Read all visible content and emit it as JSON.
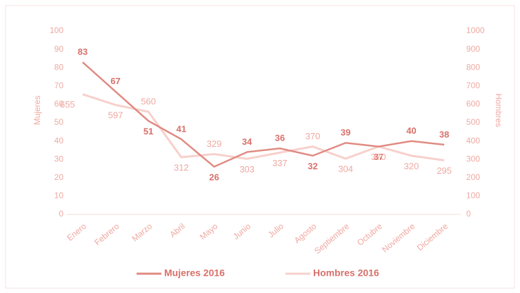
{
  "chart_data": {
    "type": "line",
    "categories": [
      "Enero",
      "Febrero",
      "Marzo",
      "Abril",
      "Mayo",
      "Junio",
      "Julio",
      "Agosto",
      "Septiembre",
      "Octubre",
      "Noviembre",
      "Diciembre"
    ],
    "series": [
      {
        "name": "Mujeres 2016",
        "color": "#e08a82",
        "values": [
          83,
          67,
          51,
          41,
          26,
          34,
          36,
          32,
          39,
          37,
          40,
          38
        ]
      },
      {
        "name": "Hombres 2016",
        "color": "#f7d0cb",
        "axis": "y2",
        "values": [
          655,
          597,
          560,
          312,
          329,
          303,
          337,
          370,
          304,
          370,
          320,
          295
        ]
      }
    ],
    "ylabel": "Mujeres",
    "y2label": "Hombres",
    "ylim": [
      0,
      100
    ],
    "yticks": [
      0,
      10,
      20,
      30,
      40,
      50,
      60,
      70,
      80,
      90,
      100
    ],
    "y2lim": [
      0,
      1000
    ],
    "y2ticks": [
      0,
      100,
      200,
      300,
      400,
      500,
      600,
      700,
      800,
      900,
      1000
    ],
    "grid": false,
    "legend": "bottom"
  }
}
